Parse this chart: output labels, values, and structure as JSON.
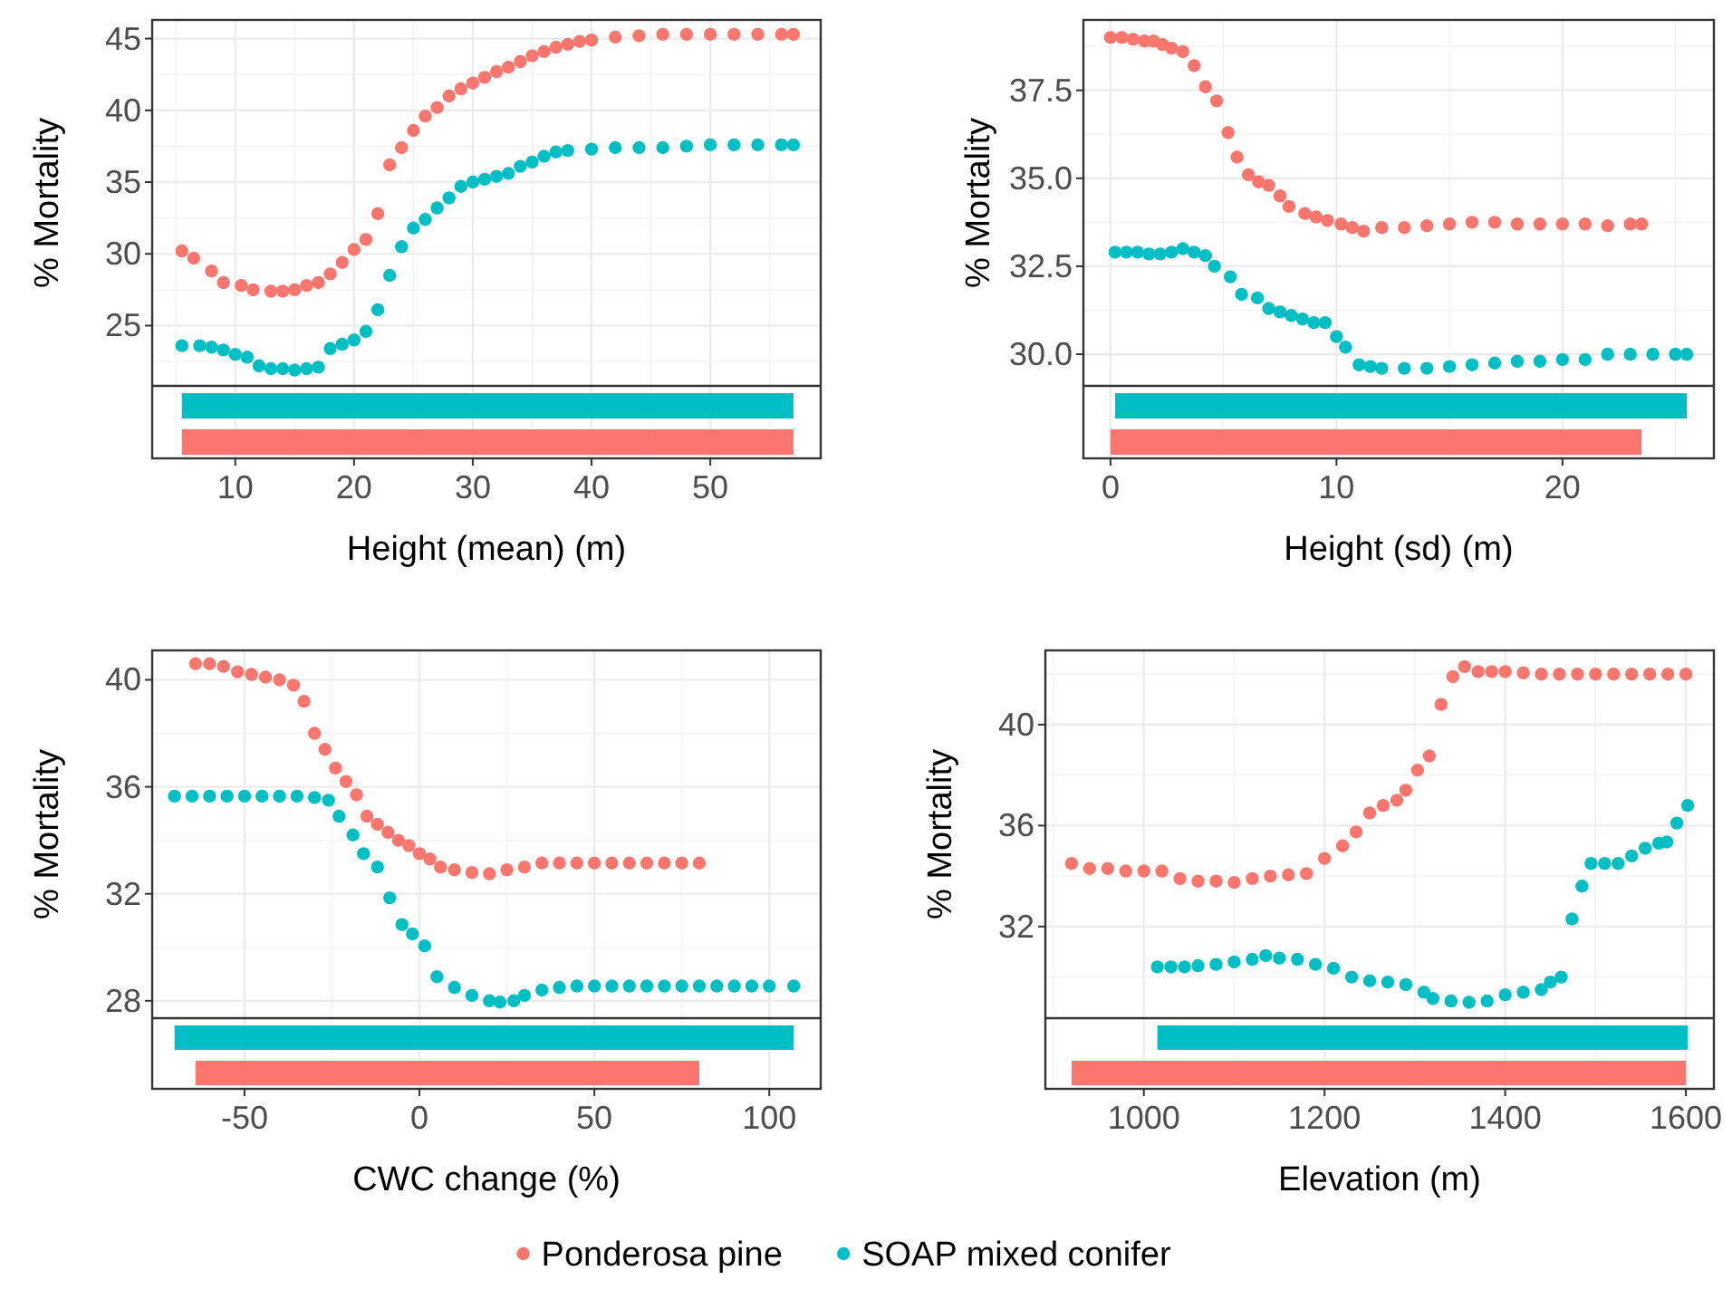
{
  "chart_data": [
    {
      "type": "scatter",
      "xlabel": "Height (mean) (m)",
      "ylabel": "% Mortality",
      "xlim": [
        3,
        59.3
      ],
      "ylim": [
        20.8,
        46.3
      ],
      "xticks": [
        10,
        20,
        30,
        40,
        50
      ],
      "yticks": [
        25,
        30,
        35,
        40,
        45
      ],
      "grid": true,
      "legend": "bottom",
      "marker": "circle",
      "series": [
        {
          "name": "Ponderosa pine",
          "color": "#f8766d",
          "x": [
            5.5,
            6.5,
            8,
            9,
            10.5,
            11.5,
            13,
            14,
            15,
            16,
            17,
            18,
            19,
            20,
            21,
            22,
            23,
            24,
            25,
            26,
            27,
            28,
            29,
            30,
            31,
            32,
            33,
            34,
            35,
            36,
            37,
            38,
            39,
            40,
            42,
            44,
            46,
            48,
            50,
            52,
            54,
            56,
            57
          ],
          "values": [
            30.2,
            29.7,
            28.8,
            28.0,
            27.8,
            27.5,
            27.4,
            27.4,
            27.5,
            27.8,
            28.0,
            28.6,
            29.4,
            30.3,
            31.0,
            32.8,
            36.2,
            37.4,
            38.6,
            39.6,
            40.2,
            41.0,
            41.5,
            41.9,
            42.3,
            42.7,
            43.0,
            43.4,
            43.8,
            44.1,
            44.4,
            44.6,
            44.8,
            44.9,
            45.1,
            45.2,
            45.3,
            45.3,
            45.3,
            45.3,
            45.3,
            45.3,
            45.3
          ]
        },
        {
          "name": "SOAP mixed conifer",
          "color": "#00bfc4",
          "x": [
            5.5,
            7,
            8,
            9,
            10,
            11,
            12,
            13,
            14,
            15,
            16,
            17,
            18,
            19,
            20,
            21,
            22,
            23,
            24,
            25,
            26,
            27,
            28,
            29,
            30,
            31,
            32,
            33,
            34,
            35,
            36,
            37,
            38,
            40,
            42,
            44,
            46,
            48,
            50,
            52,
            54,
            56,
            57
          ],
          "values": [
            23.6,
            23.6,
            23.5,
            23.3,
            23.0,
            22.8,
            22.2,
            22.0,
            22.0,
            21.9,
            22.0,
            22.1,
            23.4,
            23.7,
            24.0,
            24.6,
            26.1,
            28.5,
            30.5,
            31.8,
            32.4,
            33.2,
            33.9,
            34.7,
            35.0,
            35.2,
            35.4,
            35.6,
            36.1,
            36.4,
            36.8,
            37.1,
            37.2,
            37.3,
            37.4,
            37.4,
            37.4,
            37.5,
            37.6,
            37.6,
            37.6,
            37.6,
            37.6
          ]
        }
      ]
    },
    {
      "type": "scatter",
      "xlabel": "Height (sd) (m)",
      "ylabel": "% Mortality",
      "xlim": [
        -1.2,
        26.7
      ],
      "ylim": [
        29.1,
        39.5
      ],
      "xticks": [
        0,
        10,
        20
      ],
      "yticks": [
        {
          "value": 30,
          "label": "30.0"
        },
        {
          "value": 32.5,
          "label": "32.5"
        },
        {
          "value": 35,
          "label": "35.0"
        },
        {
          "value": 37.5,
          "label": "37.5"
        }
      ],
      "grid": true,
      "marker": "circle",
      "series": [
        {
          "color": "#f8766d",
          "x": [
            0,
            0.5,
            1,
            1.5,
            1.9,
            2.3,
            2.7,
            3.2,
            3.7,
            4.2,
            4.7,
            5.2,
            5.6,
            6.1,
            6.55,
            7,
            7.5,
            7.9,
            8.6,
            9.1,
            9.6,
            10.2,
            10.7,
            11.2,
            12,
            13,
            14,
            15,
            16,
            17,
            18,
            19,
            20,
            21,
            22,
            23,
            23.5
          ],
          "values": [
            39.0,
            39.0,
            38.95,
            38.9,
            38.9,
            38.8,
            38.7,
            38.6,
            38.2,
            37.6,
            37.2,
            36.3,
            35.6,
            35.1,
            34.9,
            34.8,
            34.5,
            34.2,
            34.0,
            33.9,
            33.8,
            33.7,
            33.6,
            33.5,
            33.6,
            33.6,
            33.65,
            33.7,
            33.75,
            33.75,
            33.7,
            33.7,
            33.7,
            33.7,
            33.65,
            33.7,
            33.7
          ]
        },
        {
          "color": "#00bfc4",
          "x": [
            0.2,
            0.7,
            1.2,
            1.7,
            2.2,
            2.7,
            3.2,
            3.7,
            4.2,
            4.6,
            5.3,
            5.8,
            6.5,
            7,
            7.5,
            8,
            8.5,
            9,
            9.5,
            10,
            10.4,
            11,
            11.5,
            12,
            13,
            14,
            15,
            16,
            17,
            18,
            19,
            20,
            21,
            22,
            23,
            24,
            25,
            25.5
          ],
          "values": [
            32.9,
            32.9,
            32.9,
            32.85,
            32.85,
            32.9,
            33.0,
            32.9,
            32.8,
            32.5,
            32.2,
            31.7,
            31.6,
            31.3,
            31.2,
            31.1,
            31.0,
            30.9,
            30.9,
            30.5,
            30.2,
            29.7,
            29.65,
            29.6,
            29.6,
            29.6,
            29.65,
            29.7,
            29.75,
            29.8,
            29.8,
            29.85,
            29.85,
            30.0,
            30.0,
            30.0,
            30.0,
            30.0
          ]
        }
      ]
    },
    {
      "type": "scatter",
      "xlabel": "CWC change (%)",
      "ylabel": "% Mortality",
      "xlim": [
        -76.4,
        114.7
      ],
      "ylim": [
        27.35,
        41.1
      ],
      "xticks": [
        -50,
        0,
        50,
        100
      ],
      "yticks": [
        28,
        32,
        36,
        40
      ],
      "grid": true,
      "marker": "circle",
      "series": [
        {
          "color": "#f8766d",
          "x": [
            -64,
            -60,
            -56,
            -52,
            -48,
            -44,
            -40,
            -36,
            -33,
            -30,
            -27,
            -24,
            -21,
            -18,
            -15,
            -12,
            -9,
            -6,
            -3,
            0,
            3,
            6,
            10,
            15,
            20,
            25,
            30,
            35,
            40,
            45,
            50,
            55,
            60,
            65,
            70,
            75,
            80
          ],
          "values": [
            40.6,
            40.6,
            40.5,
            40.3,
            40.2,
            40.1,
            40.0,
            39.8,
            39.2,
            38.0,
            37.4,
            36.7,
            36.2,
            35.7,
            34.9,
            34.6,
            34.3,
            34.0,
            33.8,
            33.5,
            33.3,
            33.0,
            32.9,
            32.8,
            32.75,
            32.9,
            33.0,
            33.15,
            33.15,
            33.15,
            33.15,
            33.15,
            33.15,
            33.15,
            33.15,
            33.15,
            33.15
          ]
        },
        {
          "color": "#00bfc4",
          "x": [
            -70,
            -65,
            -60,
            -55,
            -50,
            -45,
            -40,
            -35,
            -30,
            -26,
            -23,
            -19,
            -16,
            -12,
            -8.5,
            -5,
            -2,
            1.5,
            5,
            10,
            15,
            20,
            23,
            27,
            30,
            35,
            40,
            45,
            50,
            55,
            60,
            65,
            70,
            75,
            80,
            85,
            90,
            95,
            100,
            107
          ],
          "values": [
            35.65,
            35.65,
            35.65,
            35.65,
            35.65,
            35.65,
            35.65,
            35.65,
            35.6,
            35.5,
            34.9,
            34.2,
            33.5,
            33.0,
            31.85,
            30.85,
            30.5,
            30.05,
            28.9,
            28.5,
            28.2,
            28.0,
            27.95,
            28.0,
            28.2,
            28.4,
            28.5,
            28.55,
            28.55,
            28.55,
            28.55,
            28.55,
            28.55,
            28.55,
            28.55,
            28.55,
            28.55,
            28.55,
            28.55,
            28.55
          ]
        }
      ]
    },
    {
      "type": "scatter",
      "xlabel": "Elevation (m)",
      "ylabel": "% Mortality",
      "xlim": [
        891,
        1631
      ],
      "ylim": [
        28.37,
        42.94
      ],
      "xticks": [
        1000,
        1200,
        1400,
        1600
      ],
      "yticks": [
        32,
        36,
        40
      ],
      "grid": true,
      "marker": "circle",
      "series": [
        {
          "color": "#f8766d",
          "x": [
            920,
            940,
            960,
            980,
            1000,
            1020,
            1040,
            1060,
            1080,
            1100,
            1120,
            1140,
            1160,
            1180,
            1200,
            1220,
            1235,
            1250,
            1265,
            1280,
            1290,
            1303,
            1316,
            1329,
            1342,
            1355,
            1370,
            1385,
            1400,
            1420,
            1440,
            1460,
            1480,
            1500,
            1520,
            1540,
            1560,
            1580,
            1600
          ],
          "values": [
            34.5,
            34.3,
            34.3,
            34.2,
            34.2,
            34.2,
            33.9,
            33.8,
            33.8,
            33.75,
            33.9,
            34.0,
            34.05,
            34.1,
            34.7,
            35.2,
            35.75,
            36.5,
            36.8,
            37.0,
            37.4,
            38.2,
            38.76,
            40.8,
            41.9,
            42.3,
            42.1,
            42.1,
            42.1,
            42.05,
            42.0,
            42.0,
            42.0,
            42.0,
            42.0,
            42.0,
            42.0,
            42.0,
            42.0
          ]
        },
        {
          "color": "#00bfc4",
          "x": [
            1015,
            1030,
            1045,
            1060,
            1080,
            1100,
            1120,
            1135,
            1150,
            1170,
            1190,
            1210,
            1230,
            1250,
            1270,
            1290,
            1310,
            1320,
            1340,
            1360,
            1380,
            1400,
            1420,
            1440,
            1450,
            1462,
            1474,
            1485,
            1495,
            1510,
            1525,
            1540,
            1555,
            1570,
            1579,
            1590,
            1602
          ],
          "values": [
            30.4,
            30.4,
            30.4,
            30.45,
            30.5,
            30.6,
            30.7,
            30.85,
            30.75,
            30.7,
            30.5,
            30.35,
            30.0,
            29.85,
            29.8,
            29.7,
            29.4,
            29.15,
            29.05,
            29.0,
            29.05,
            29.3,
            29.4,
            29.5,
            29.8,
            30.0,
            32.3,
            33.6,
            34.5,
            34.5,
            34.5,
            34.8,
            35.1,
            35.3,
            35.35,
            36.1,
            36.8
          ]
        }
      ]
    }
  ]
}
